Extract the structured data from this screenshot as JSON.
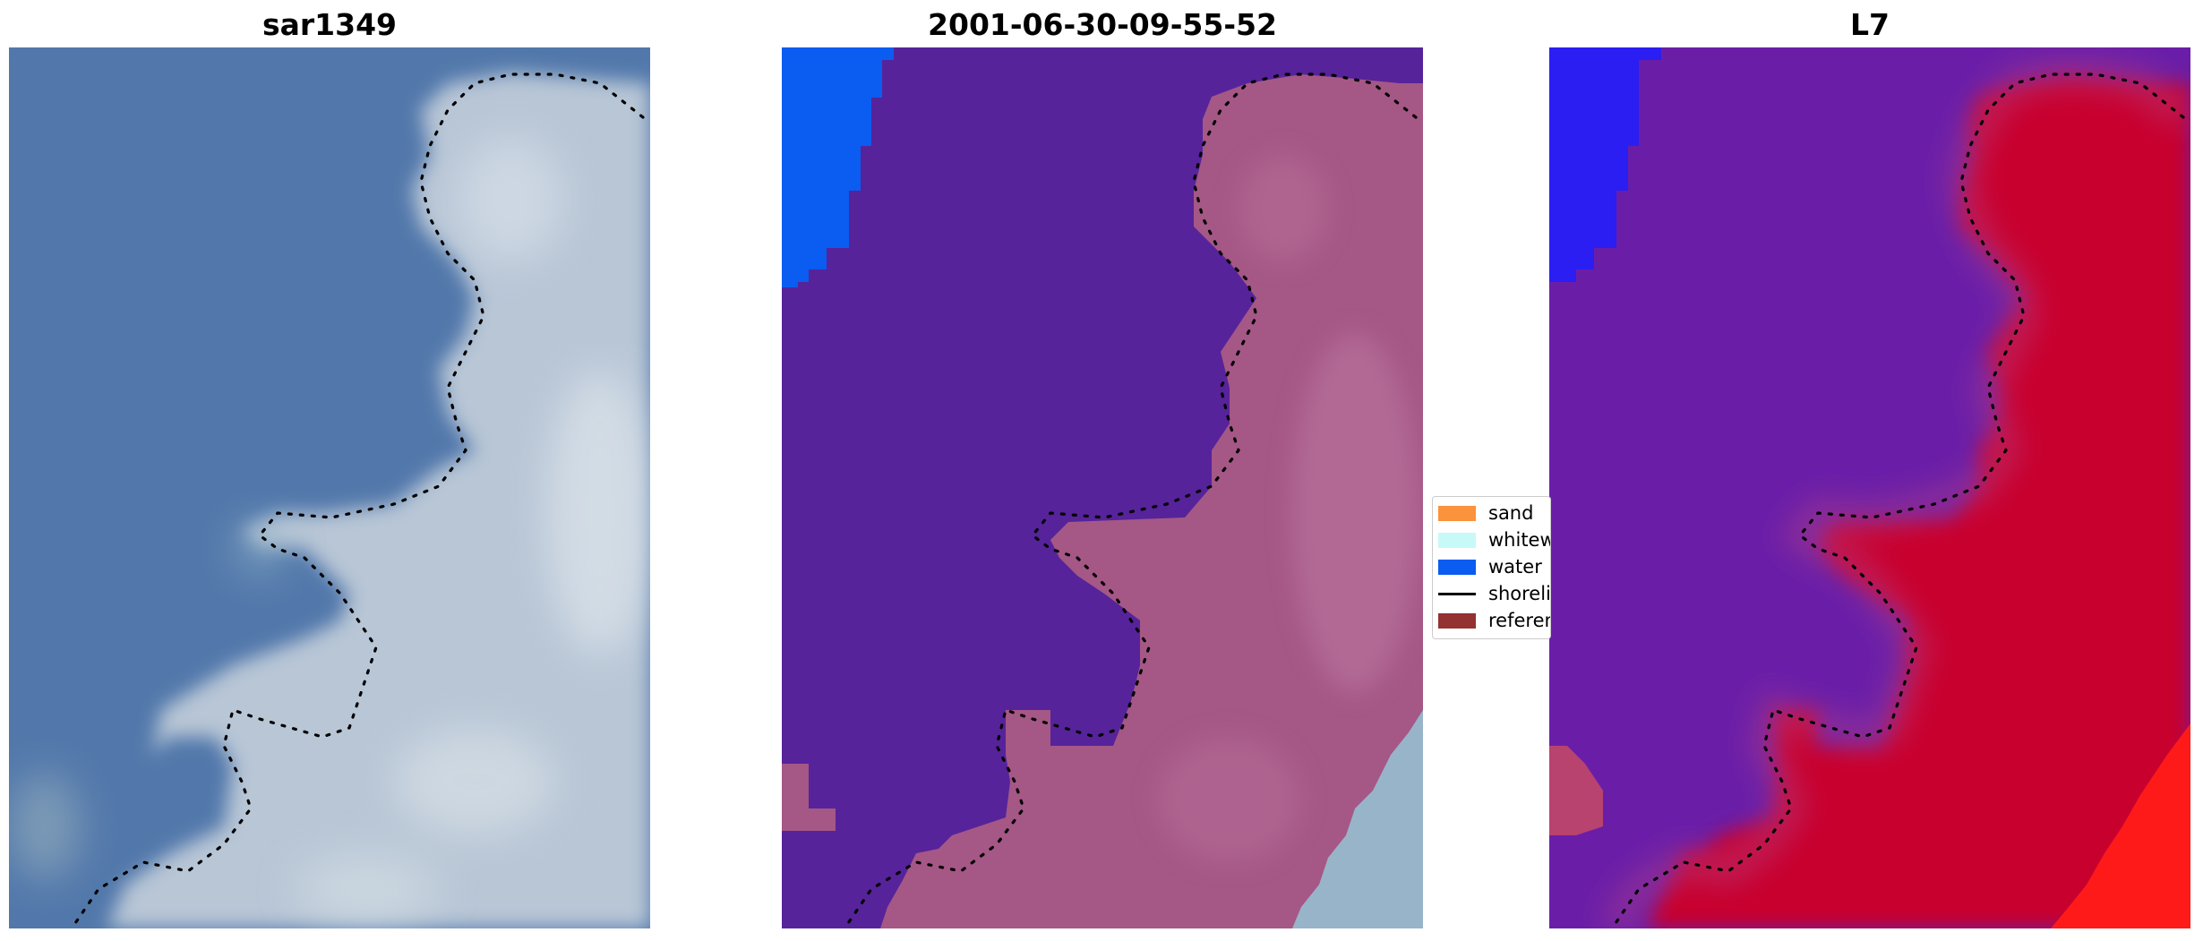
{
  "panels": [
    {
      "title": "sar1349"
    },
    {
      "title": "2001-06-30-09-55-52"
    },
    {
      "title": "L7"
    }
  ],
  "legend": {
    "items": [
      {
        "label": "sand",
        "color": "#fb923c",
        "kind": "patch"
      },
      {
        "label": "whitewater",
        "color": "#c8f9f9",
        "kind": "patch"
      },
      {
        "label": "water",
        "color": "#0b5cf0",
        "kind": "patch"
      },
      {
        "label": "shoreline",
        "color": "#000000",
        "kind": "line"
      },
      {
        "label": "reference shoreline",
        "color": "#943232",
        "kind": "patch"
      }
    ]
  },
  "colors": {
    "rgb_water": "#5278ab",
    "rgb_land": "#b8c6d6",
    "class_water_area": "#56239a",
    "class_sand_overlay": "#a55786",
    "class_open_water": "#0b5cf0",
    "index_low": "#6a1ea8",
    "index_high": "#c8002e",
    "index_extreme_low": "#2a1ef2",
    "index_extreme_high": "#ff1a1a"
  }
}
